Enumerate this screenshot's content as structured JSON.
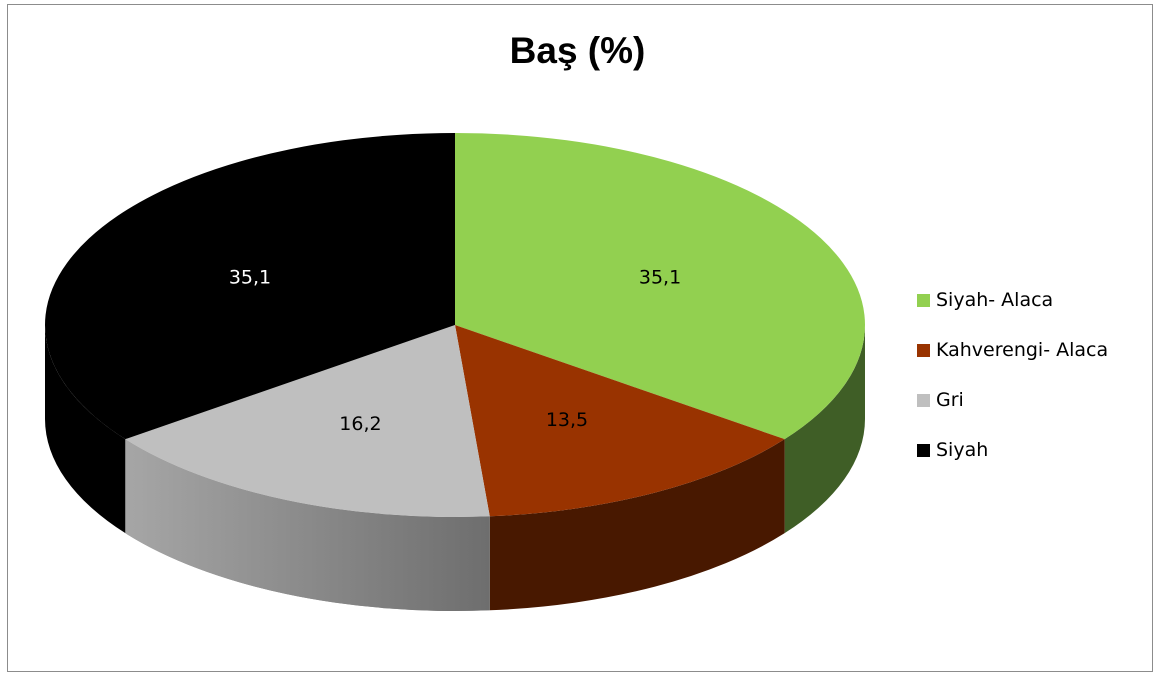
{
  "chart_data": {
    "type": "pie",
    "title": "Baş (%)",
    "slices": [
      {
        "label": "Siyah- Alaca",
        "value": 35.1,
        "display": "35,1",
        "color": "#92d050",
        "side": "#3f5e26",
        "text": "#000000"
      },
      {
        "label": "Kahverengi- Alaca",
        "value": 13.5,
        "display": "13,5",
        "color": "#993300",
        "side": "#481800",
        "text": "#000000"
      },
      {
        "label": "Gri",
        "value": 16.2,
        "display": "16,2",
        "color": "#bfbfbf",
        "side": "#8a8a8a",
        "text": "#000000"
      },
      {
        "label": "Siyah",
        "value": 35.1,
        "display": "35,1",
        "color": "#000000",
        "side": "#000000",
        "text": "#ffffff"
      }
    ],
    "legend_position": "right",
    "style": "3d"
  }
}
